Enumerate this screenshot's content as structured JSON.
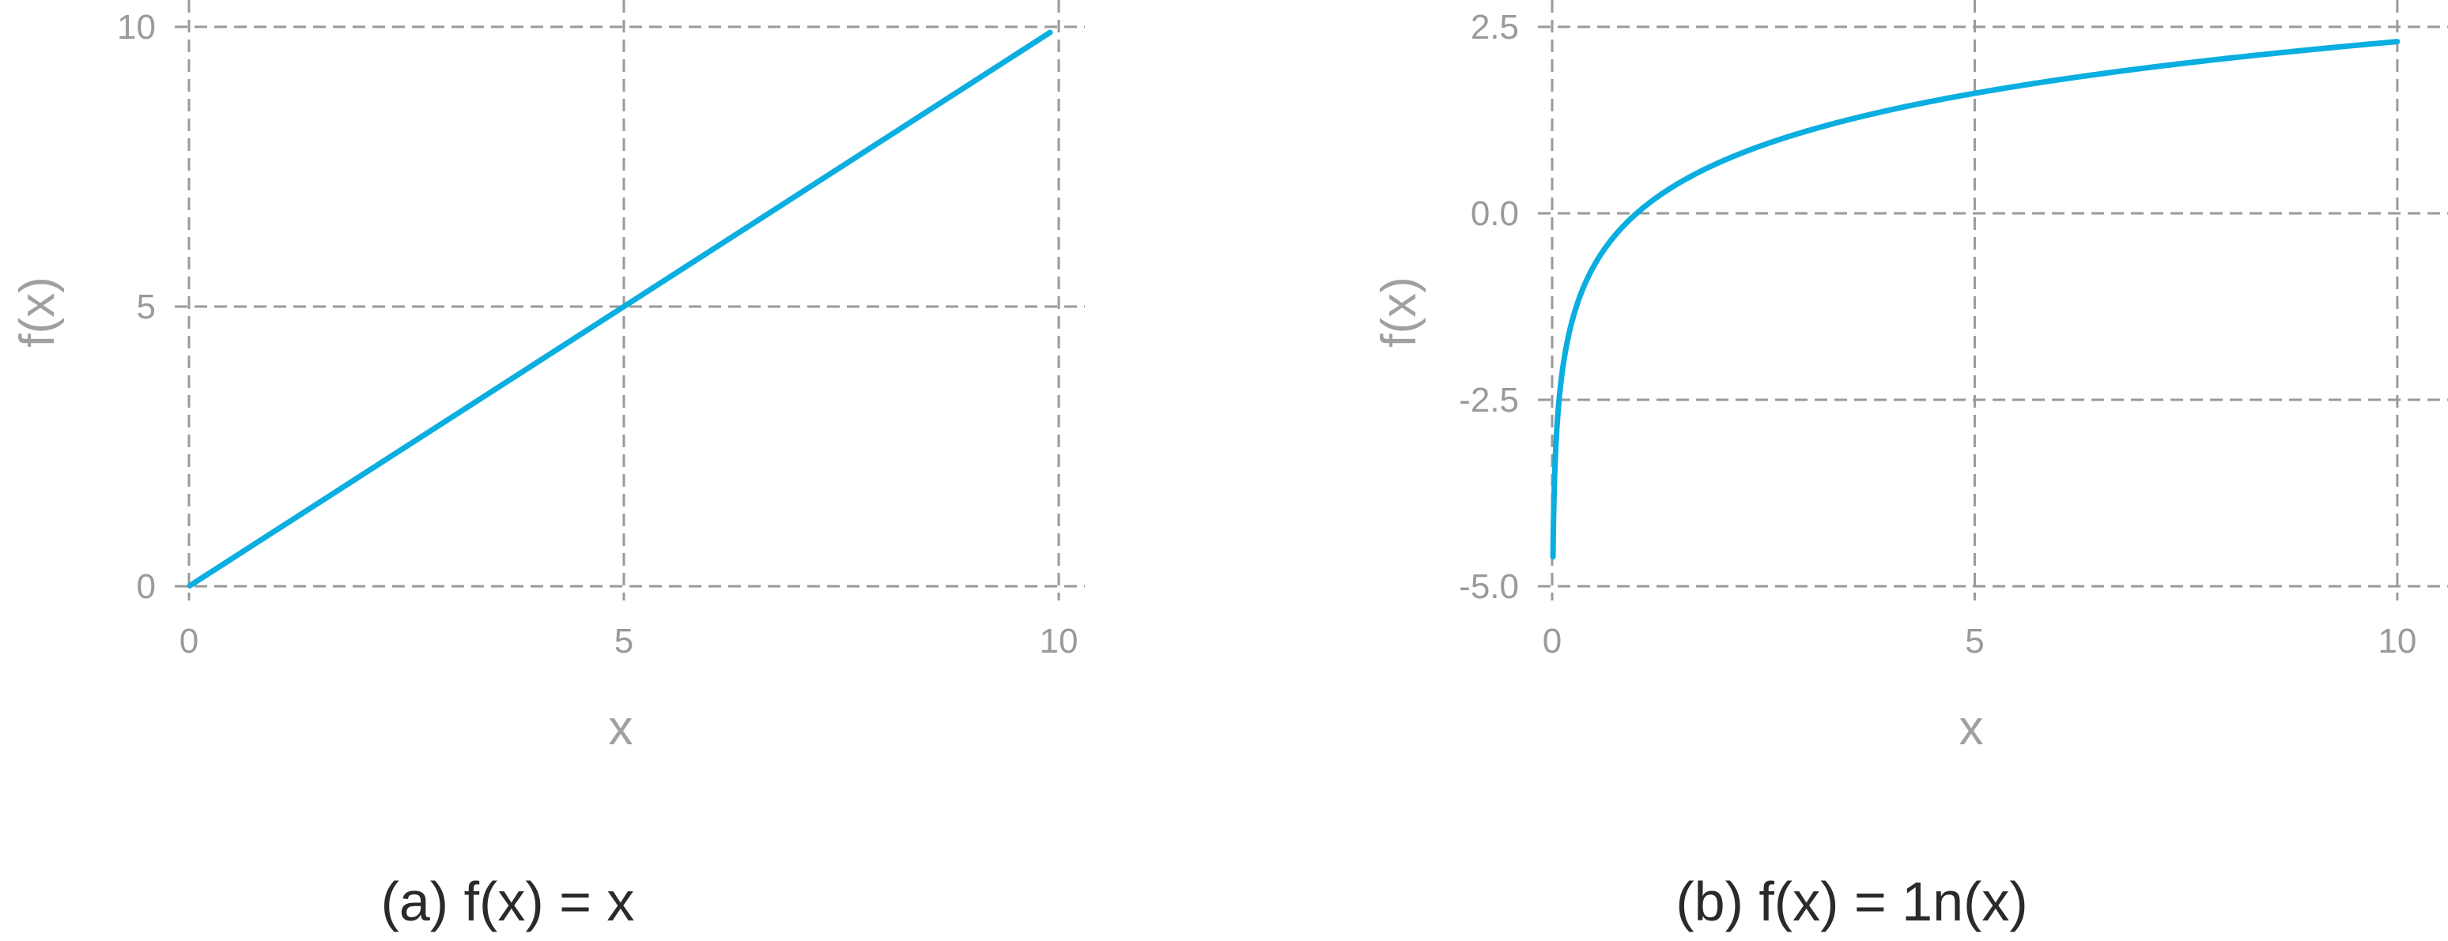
{
  "colors": {
    "series": "#0aaee0",
    "grid": "#9a9a9a"
  },
  "chart_data": [
    {
      "type": "line",
      "function": "identity",
      "caption": "(a) f(x) = x",
      "xlabel": "x",
      "ylabel": "f(x)",
      "xlim": [
        0,
        10.3
      ],
      "ylim": [
        0,
        10
      ],
      "xticks": [
        0,
        5,
        10
      ],
      "xtick_labels": [
        "0",
        "5",
        "10"
      ],
      "yticks": [
        0,
        5,
        10
      ],
      "ytick_labels": [
        "0",
        "5",
        "10"
      ],
      "grid": true,
      "series": [
        {
          "x": [
            0.01,
            2,
            4,
            5,
            6,
            8,
            9.9
          ],
          "y": [
            0.01,
            2,
            4,
            5,
            6,
            8,
            9.9
          ]
        }
      ]
    },
    {
      "type": "line",
      "function": "natural-log",
      "caption": "(b) f(x) = 1n(x)",
      "xlabel": "x",
      "ylabel": "f(x)",
      "xlim": [
        0,
        10.6
      ],
      "ylim": [
        -5.0,
        2.5
      ],
      "xticks": [
        0,
        5,
        10
      ],
      "xtick_labels": [
        "0",
        "5",
        "10"
      ],
      "yticks": [
        -5.0,
        -2.5,
        0.0,
        2.5
      ],
      "ytick_labels": [
        "-5.0",
        "-2.5",
        "0.0",
        "2.5"
      ],
      "grid": true,
      "series": [
        {
          "x": [
            0.01,
            0.05,
            0.1,
            0.3,
            0.5,
            1,
            2,
            5,
            10
          ],
          "y": [
            -4.61,
            -3.0,
            -2.3,
            -1.2,
            -0.69,
            0.0,
            0.69,
            1.61,
            2.3
          ]
        }
      ]
    }
  ]
}
